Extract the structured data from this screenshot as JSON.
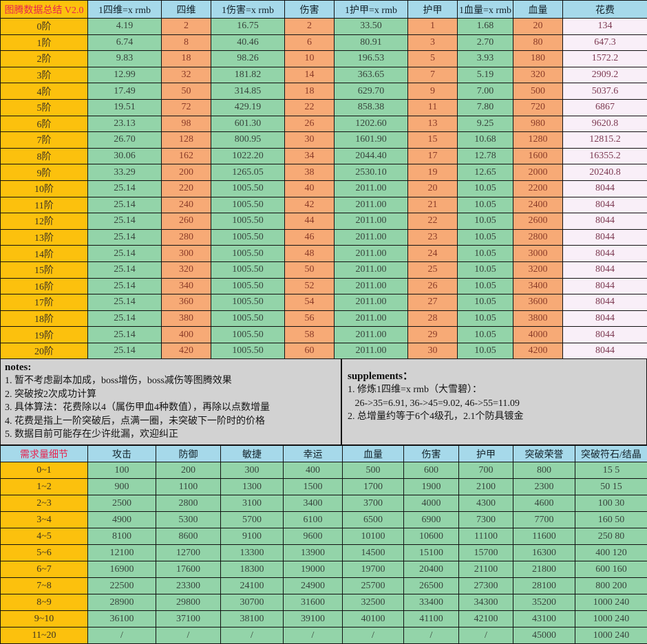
{
  "colors": {
    "cell_yellow": "#fcc10d",
    "header_blue": "#a6d9ea",
    "cell_green": "#93d4a9",
    "cell_orange": "#f7aa76",
    "cell_pink": "#f9eff8",
    "notes_gray": "#d2d2d2",
    "title_red": "#e8224f",
    "grid_line": "#111111"
  },
  "top_table": {
    "title": "图腾数据总结 V2.0",
    "columns": [
      "1四维=x rmb",
      "四维",
      "1伤害=x rmb",
      "伤害",
      "1护甲=x rmb",
      "护甲",
      "1血量=x rmb",
      "血量",
      "花费"
    ],
    "rows": [
      {
        "label": "0阶",
        "values": [
          "4.19",
          "2",
          "16.75",
          "2",
          "33.50",
          "1",
          "1.68",
          "20",
          "134"
        ]
      },
      {
        "label": "1阶",
        "values": [
          "6.74",
          "8",
          "40.46",
          "6",
          "80.91",
          "3",
          "2.70",
          "80",
          "647.3"
        ]
      },
      {
        "label": "2阶",
        "values": [
          "9.83",
          "18",
          "98.26",
          "10",
          "196.53",
          "5",
          "3.93",
          "180",
          "1572.2"
        ]
      },
      {
        "label": "3阶",
        "values": [
          "12.99",
          "32",
          "181.82",
          "14",
          "363.65",
          "7",
          "5.19",
          "320",
          "2909.2"
        ]
      },
      {
        "label": "4阶",
        "values": [
          "17.49",
          "50",
          "314.85",
          "18",
          "629.70",
          "9",
          "7.00",
          "500",
          "5037.6"
        ]
      },
      {
        "label": "5阶",
        "values": [
          "19.51",
          "72",
          "429.19",
          "22",
          "858.38",
          "11",
          "7.80",
          "720",
          "6867"
        ]
      },
      {
        "label": "6阶",
        "values": [
          "23.13",
          "98",
          "601.30",
          "26",
          "1202.60",
          "13",
          "9.25",
          "980",
          "9620.8"
        ]
      },
      {
        "label": "7阶",
        "values": [
          "26.70",
          "128",
          "800.95",
          "30",
          "1601.90",
          "15",
          "10.68",
          "1280",
          "12815.2"
        ]
      },
      {
        "label": "8阶",
        "values": [
          "30.06",
          "162",
          "1022.20",
          "34",
          "2044.40",
          "17",
          "12.78",
          "1600",
          "16355.2"
        ]
      },
      {
        "label": "9阶",
        "values": [
          "33.29",
          "200",
          "1265.05",
          "38",
          "2530.10",
          "19",
          "12.65",
          "2000",
          "20240.8"
        ]
      },
      {
        "label": "10阶",
        "values": [
          "25.14",
          "220",
          "1005.50",
          "40",
          "2011.00",
          "20",
          "10.05",
          "2200",
          "8044"
        ]
      },
      {
        "label": "11阶",
        "values": [
          "25.14",
          "240",
          "1005.50",
          "42",
          "2011.00",
          "21",
          "10.05",
          "2400",
          "8044"
        ]
      },
      {
        "label": "12阶",
        "values": [
          "25.14",
          "260",
          "1005.50",
          "44",
          "2011.00",
          "22",
          "10.05",
          "2600",
          "8044"
        ]
      },
      {
        "label": "13阶",
        "values": [
          "25.14",
          "280",
          "1005.50",
          "46",
          "2011.00",
          "23",
          "10.05",
          "2800",
          "8044"
        ]
      },
      {
        "label": "14阶",
        "values": [
          "25.14",
          "300",
          "1005.50",
          "48",
          "2011.00",
          "24",
          "10.05",
          "3000",
          "8044"
        ]
      },
      {
        "label": "15阶",
        "values": [
          "25.14",
          "320",
          "1005.50",
          "50",
          "2011.00",
          "25",
          "10.05",
          "3200",
          "8044"
        ]
      },
      {
        "label": "16阶",
        "values": [
          "25.14",
          "340",
          "1005.50",
          "52",
          "2011.00",
          "26",
          "10.05",
          "3400",
          "8044"
        ]
      },
      {
        "label": "17阶",
        "values": [
          "25.14",
          "360",
          "1005.50",
          "54",
          "2011.00",
          "27",
          "10.05",
          "3600",
          "8044"
        ]
      },
      {
        "label": "18阶",
        "values": [
          "25.14",
          "380",
          "1005.50",
          "56",
          "2011.00",
          "28",
          "10.05",
          "3800",
          "8044"
        ]
      },
      {
        "label": "19阶",
        "values": [
          "25.14",
          "400",
          "1005.50",
          "58",
          "2011.00",
          "29",
          "10.05",
          "4000",
          "8044"
        ]
      },
      {
        "label": "20阶",
        "values": [
          "25.14",
          "420",
          "1005.50",
          "60",
          "2011.00",
          "30",
          "10.05",
          "4200",
          "8044"
        ]
      }
    ]
  },
  "notes": {
    "heading": "notes:",
    "lines": [
      "1. 暂不考虑副本加成，boss增伤，boss减伤等图腾效果",
      "2. 突破按2次成功计算",
      "3. 具体算法：花费除以4（属伤甲血4种数值），再除以点数增量",
      "4. 花费是指上一阶突破后，点满一圈，未突破下一阶时的价格",
      "5. 数据目前可能存在少许纰漏，欢迎纠正"
    ]
  },
  "supplements": {
    "heading": "supplements：",
    "lines": [
      "1. 修炼1四维=x rmb（大雪碧）：",
      "   26->35=6.91, 36->45=9.02, 46->55=11.09",
      "2. 总增量约等于6个4级孔，2.1个防具镀金"
    ]
  },
  "bottom_table": {
    "title": "需求量细节",
    "columns": [
      "攻击",
      "防御",
      "敏捷",
      "幸运",
      "血量",
      "伤害",
      "护甲",
      "突破荣誉",
      "突破符石/结晶"
    ],
    "rows": [
      {
        "label": "0~1",
        "values": [
          "100",
          "200",
          "300",
          "400",
          "500",
          "600",
          "700",
          "800",
          "15 5"
        ]
      },
      {
        "label": "1~2",
        "values": [
          "900",
          "1100",
          "1300",
          "1500",
          "1700",
          "1900",
          "2100",
          "2300",
          "50 15"
        ]
      },
      {
        "label": "2~3",
        "values": [
          "2500",
          "2800",
          "3100",
          "3400",
          "3700",
          "4000",
          "4300",
          "4600",
          "100 30"
        ]
      },
      {
        "label": "3~4",
        "values": [
          "4900",
          "5300",
          "5700",
          "6100",
          "6500",
          "6900",
          "7300",
          "7700",
          "160 50"
        ]
      },
      {
        "label": "4~5",
        "values": [
          "8100",
          "8600",
          "9100",
          "9600",
          "10100",
          "10600",
          "11100",
          "11600",
          "250 80"
        ]
      },
      {
        "label": "5~6",
        "values": [
          "12100",
          "12700",
          "13300",
          "13900",
          "14500",
          "15100",
          "15700",
          "16300",
          "400 120"
        ]
      },
      {
        "label": "6~7",
        "values": [
          "16900",
          "17600",
          "18300",
          "19000",
          "19700",
          "20400",
          "21100",
          "21800",
          "600 160"
        ]
      },
      {
        "label": "7~8",
        "values": [
          "22500",
          "23300",
          "24100",
          "24900",
          "25700",
          "26500",
          "27300",
          "28100",
          "800 200"
        ]
      },
      {
        "label": "8~9",
        "values": [
          "28900",
          "29800",
          "30700",
          "31600",
          "32500",
          "33400",
          "34300",
          "35200",
          "1000 240"
        ]
      },
      {
        "label": "9~10",
        "values": [
          "36100",
          "37100",
          "38100",
          "39100",
          "40100",
          "41100",
          "42100",
          "43100",
          "1000 240"
        ]
      },
      {
        "label": "11~20",
        "values": [
          "/",
          "/",
          "/",
          "/",
          "/",
          "/",
          "/",
          "45000",
          "1000 240"
        ]
      }
    ]
  }
}
